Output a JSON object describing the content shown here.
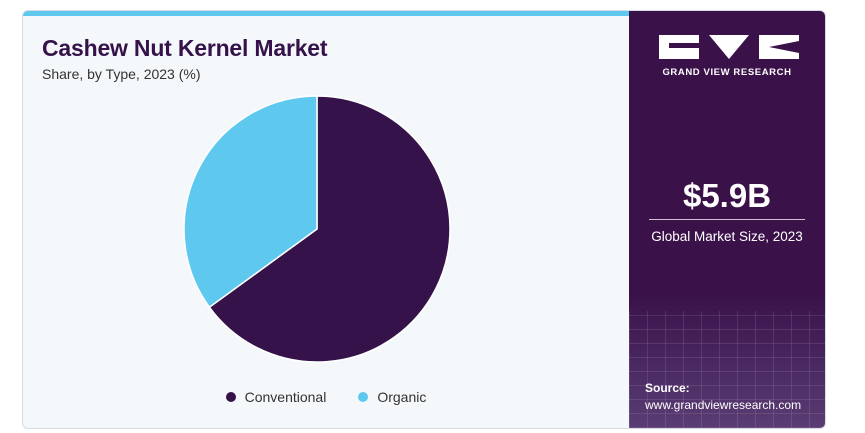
{
  "header": {
    "title": "Cashew Nut Kernel Market",
    "subtitle": "Share, by Type, 2023 (%)"
  },
  "chart_data": {
    "type": "pie",
    "title": "Cashew Nut Kernel Market",
    "subtitle": "Share, by Type, 2023 (%)",
    "categories": [
      "Conventional",
      "Organic"
    ],
    "values": [
      65,
      35
    ],
    "colors": [
      "#35124a",
      "#5fc8ef"
    ],
    "legend_position": "bottom-center"
  },
  "sidebar": {
    "brand": "GRAND VIEW RESEARCH",
    "market_size": "$5.9B",
    "market_size_label": "Global Market Size, 2023",
    "source_label": "Source:",
    "source_url": "www.grandviewresearch.com"
  }
}
